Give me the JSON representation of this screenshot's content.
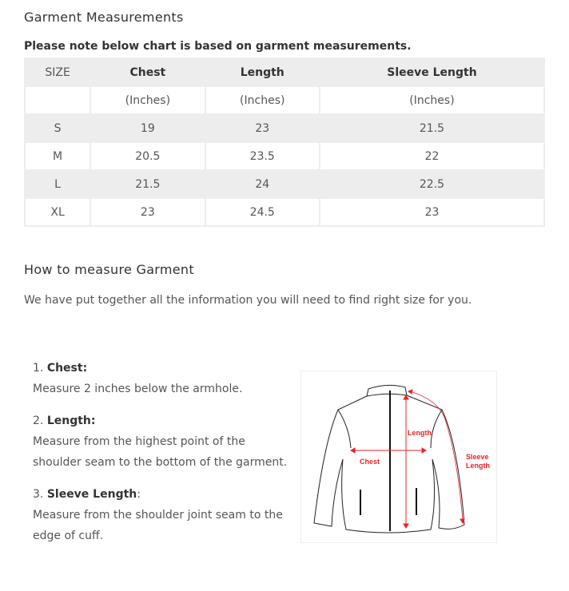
{
  "title": "Garment Measurements",
  "note": "Please note below chart is based on garment measurements.",
  "table": {
    "headers": [
      "SIZE",
      "Chest",
      "Length",
      "Sleeve Length"
    ],
    "units": [
      "",
      "(Inches)",
      "(Inches)",
      "(Inches)"
    ],
    "rows": [
      [
        "S",
        "19",
        "23",
        "21.5"
      ],
      [
        "M",
        "20.5",
        "23.5",
        "22"
      ],
      [
        "L",
        "21.5",
        "24",
        "22.5"
      ],
      [
        "XL",
        "23",
        "24.5",
        "23"
      ]
    ]
  },
  "how": {
    "title": "How to measure Garment",
    "intro": "We have put together all the information you will need to find right size for you.",
    "steps": [
      {
        "num": "1.",
        "name": "Chest:",
        "desc": "Measure 2 inches below the armhole."
      },
      {
        "num": "2.",
        "name": "Length:",
        "desc": "Measure from the highest point of the shoulder seam to the bottom of the garment."
      },
      {
        "num": "3.",
        "name": "Sleeve Length",
        "suffix": ":",
        "desc": "Measure from the shoulder joint seam to the edge of cuff."
      }
    ],
    "diagram": {
      "chest": "Chest",
      "length": "Length",
      "sleeve1": "Sleeve",
      "sleeve2": "Length",
      "accent": "#ee2222"
    }
  }
}
